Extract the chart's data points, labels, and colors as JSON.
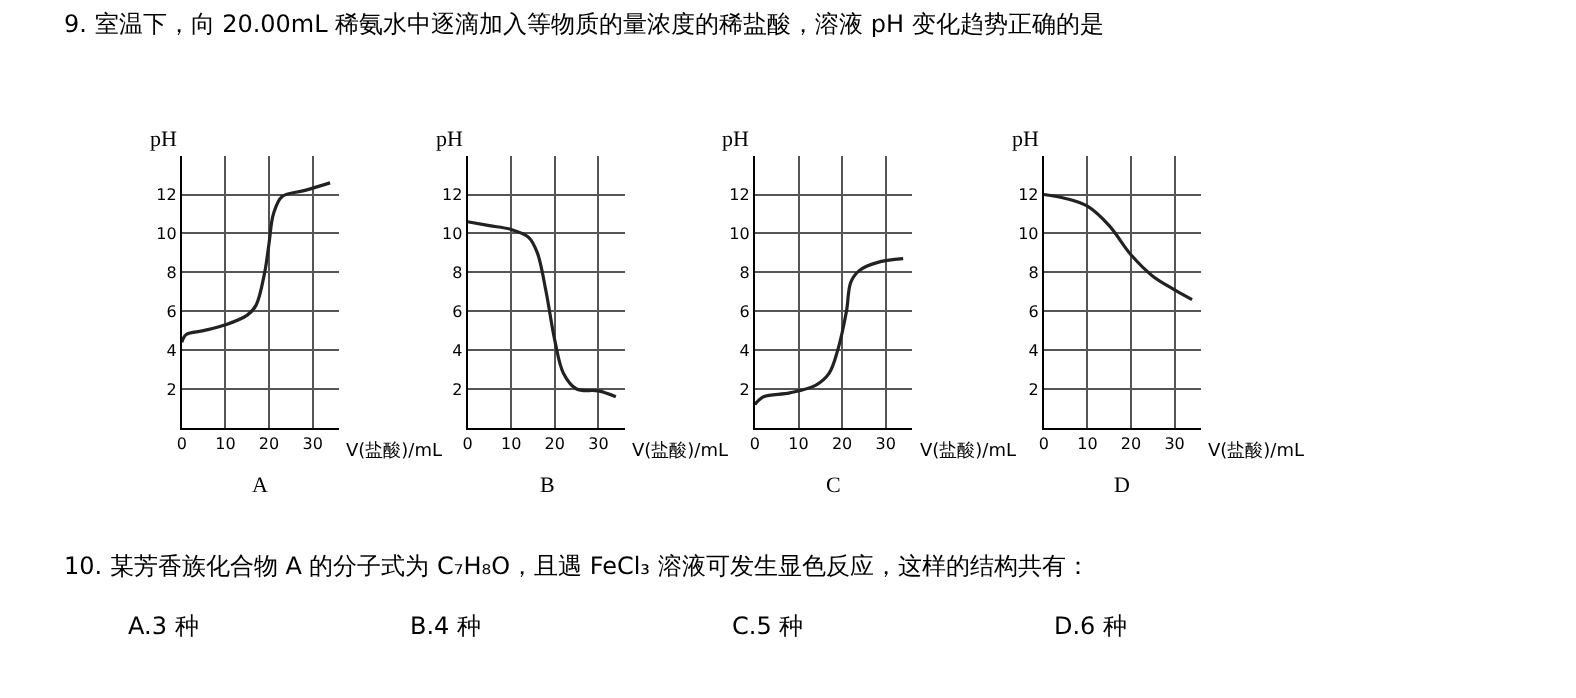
{
  "chart_data": [
    {
      "type": "line",
      "title": "9. 室温下，向 20.00mL 稀氨水中逐滴加入等物质的量浓度的稀盐酸，溶液 pH 变化趋势正确的是",
      "subtitle": "A",
      "xlabel": "V(盐酸)/mL",
      "ylabel": "pH",
      "x": [
        0,
        1,
        5,
        10,
        15,
        17,
        19,
        20,
        21,
        23,
        28,
        34
      ],
      "values": [
        4.4,
        4.8,
        5.0,
        5.3,
        5.8,
        6.3,
        8.0,
        9.5,
        11.0,
        11.9,
        12.2,
        12.6
      ],
      "color": "#222222",
      "xlim": [
        0,
        36
      ],
      "ylim": [
        0,
        14
      ],
      "xticks": [
        0,
        10,
        20,
        30
      ],
      "yticks": [
        2,
        4,
        6,
        8,
        10,
        12
      ],
      "grid": true
    },
    {
      "type": "line",
      "subtitle": "B",
      "xlabel": "V(盐酸)/mL",
      "ylabel": "pH",
      "x": [
        0,
        5,
        10,
        14,
        16,
        18,
        20,
        22,
        25,
        30,
        34
      ],
      "values": [
        10.6,
        10.4,
        10.2,
        9.8,
        9.0,
        7.0,
        4.5,
        2.8,
        2.0,
        1.9,
        1.6
      ],
      "color": "#222222",
      "xlim": [
        0,
        36
      ],
      "ylim": [
        0,
        14
      ],
      "xticks": [
        0,
        10,
        20,
        30
      ],
      "yticks": [
        2,
        4,
        6,
        8,
        10,
        12
      ],
      "grid": true
    },
    {
      "type": "line",
      "subtitle": "C",
      "xlabel": "V(盐酸)/mL",
      "ylabel": "pH",
      "x": [
        0,
        2,
        8,
        14,
        17,
        19,
        21,
        22,
        24,
        28,
        34
      ],
      "values": [
        1.2,
        1.6,
        1.8,
        2.2,
        2.8,
        4.0,
        6.0,
        7.5,
        8.1,
        8.5,
        8.7
      ],
      "color": "#222222",
      "xlim": [
        0,
        36
      ],
      "ylim": [
        0,
        14
      ],
      "xticks": [
        0,
        10,
        20,
        30
      ],
      "yticks": [
        2,
        4,
        6,
        8,
        10,
        12
      ],
      "grid": true
    },
    {
      "type": "line",
      "subtitle": "D",
      "xlabel": "V(盐酸)/mL",
      "ylabel": "pH",
      "x": [
        0,
        5,
        10,
        15,
        20,
        25,
        30,
        34
      ],
      "values": [
        12.0,
        11.8,
        11.4,
        10.4,
        8.9,
        7.8,
        7.1,
        6.6
      ],
      "color": "#222222",
      "xlim": [
        0,
        36
      ],
      "ylim": [
        0,
        14
      ],
      "xticks": [
        0,
        10,
        20,
        30
      ],
      "yticks": [
        2,
        4,
        6,
        8,
        10,
        12
      ],
      "grid": true,
      "annotations": [
        "10. 某芳香族化合物 A 的分子式为 C₇H₈O，且遇 FeCl₃ 溶液可发生显色反应，这样的结构共有：",
        "A.3 种",
        "B.4 种",
        "C.5 种",
        "D.6 种"
      ]
    }
  ]
}
